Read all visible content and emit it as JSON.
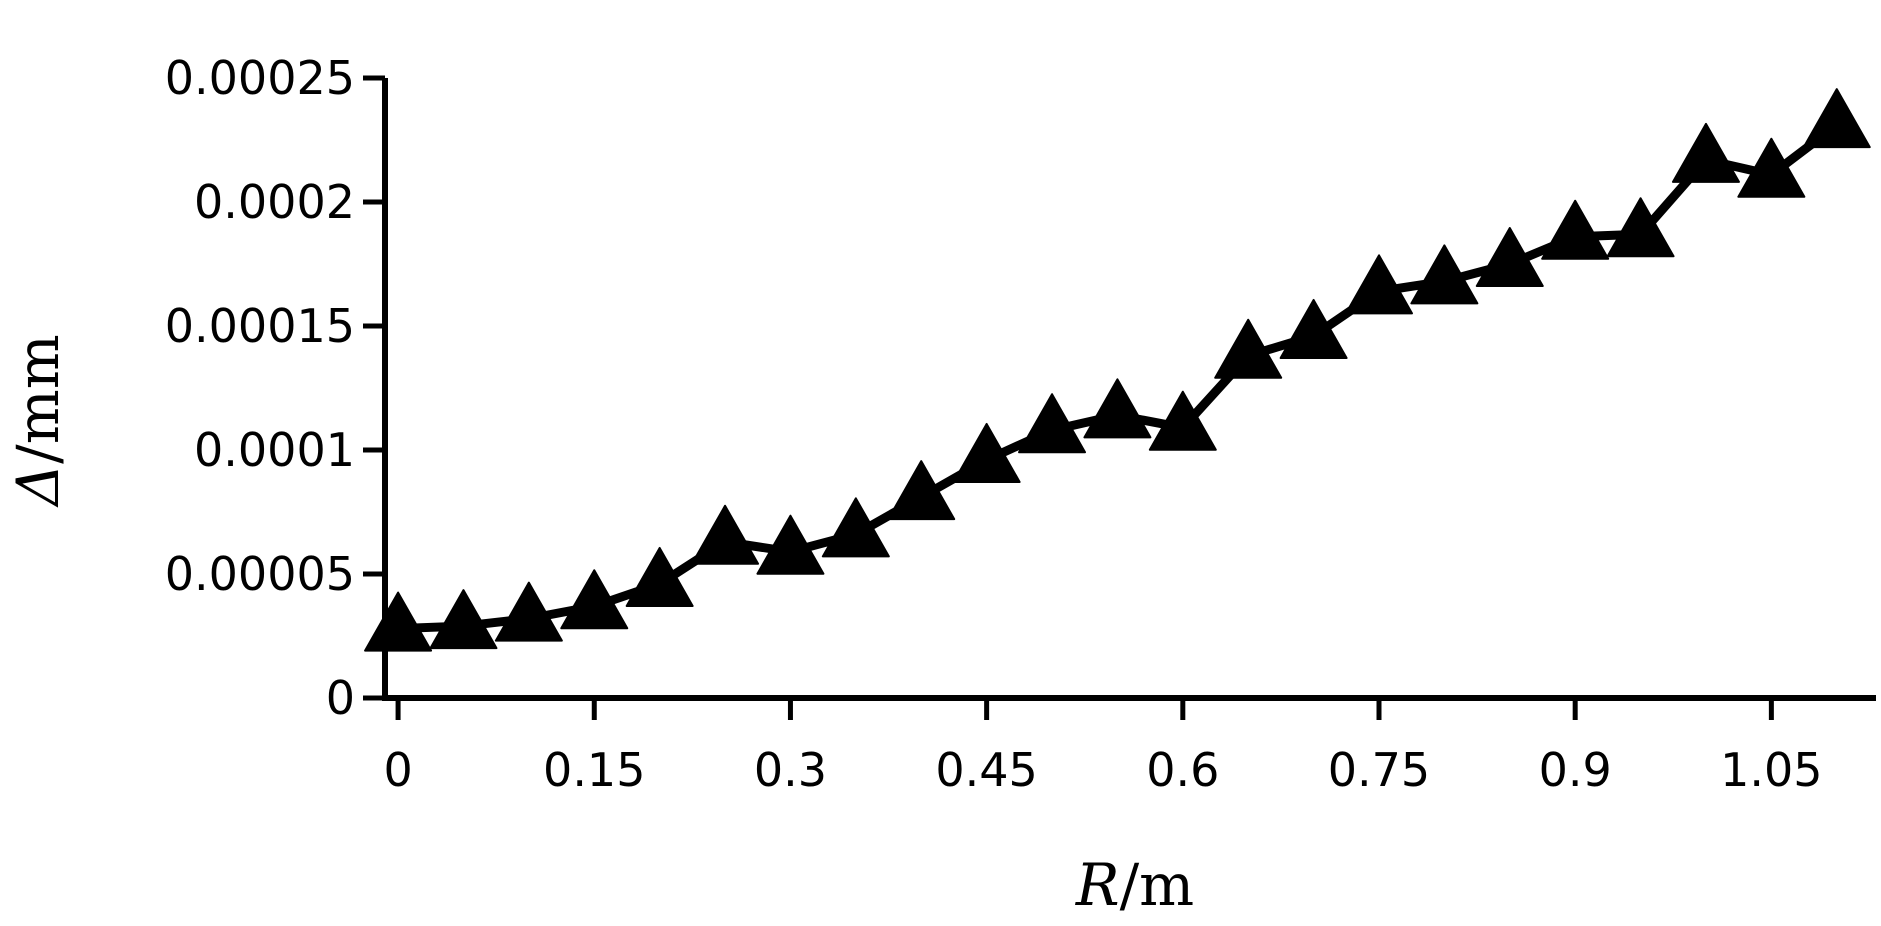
{
  "chart_data": {
    "type": "line",
    "title": "",
    "xlabel": {
      "symbol": "R",
      "unit": "/m"
    },
    "ylabel": {
      "symbol": "Δ",
      "unit": "/mm"
    },
    "xlim": [
      -0.01,
      1.13
    ],
    "ylim": [
      0,
      0.00025
    ],
    "x_ticks": [
      {
        "value": 0,
        "label": "0"
      },
      {
        "value": 0.15,
        "label": "0.15"
      },
      {
        "value": 0.3,
        "label": "0.3"
      },
      {
        "value": 0.45,
        "label": "0.45"
      },
      {
        "value": 0.6,
        "label": "0.6"
      },
      {
        "value": 0.75,
        "label": "0.75"
      },
      {
        "value": 0.9,
        "label": "0.9"
      },
      {
        "value": 1.05,
        "label": "1.05"
      }
    ],
    "y_ticks": [
      {
        "value": 0,
        "label": "0"
      },
      {
        "value": 5e-05,
        "label": "0.00005"
      },
      {
        "value": 0.0001,
        "label": "0.0001"
      },
      {
        "value": 0.00015,
        "label": "0.00015"
      },
      {
        "value": 0.0002,
        "label": "0.0002"
      },
      {
        "value": 0.00025,
        "label": "0.00025"
      }
    ],
    "grid": false,
    "legend": "none",
    "marker": "triangle",
    "color": "#000000",
    "series": [
      {
        "x": [
          0.0,
          0.05,
          0.1,
          0.15,
          0.2,
          0.25,
          0.3,
          0.35,
          0.4,
          0.45,
          0.5,
          0.55,
          0.6,
          0.65,
          0.7,
          0.75,
          0.8,
          0.85,
          0.9,
          0.95,
          1.0,
          1.05,
          1.1
        ],
        "y": [
          2.8e-05,
          2.9e-05,
          3.2e-05,
          3.7e-05,
          4.6e-05,
          6.3e-05,
          5.9e-05,
          6.6e-05,
          8.1e-05,
          9.6e-05,
          0.000108,
          0.000114,
          0.000109,
          0.000138,
          0.000146,
          0.000164,
          0.000168,
          0.000175,
          0.000186,
          0.000187,
          0.000217,
          0.000211,
          0.000231
        ]
      }
    ]
  }
}
